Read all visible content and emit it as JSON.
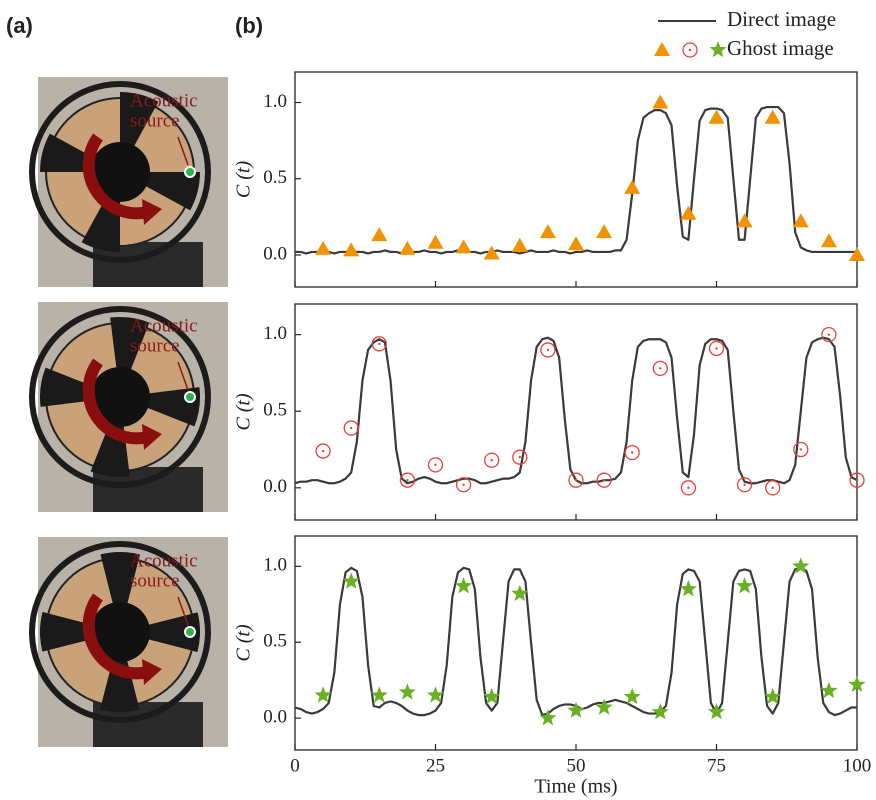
{
  "panel_labels": [
    "(a)",
    "(b)"
  ],
  "photos": [
    {
      "label_lines": [
        "Acoustic",
        "source"
      ]
    },
    {
      "label_lines": [
        "Acoustic",
        "source"
      ]
    },
    {
      "label_lines": [
        "Acoustic",
        "source"
      ]
    }
  ],
  "chart_data": [
    {
      "type": "line",
      "ylabel": "C (t)",
      "xlim": [
        0,
        100
      ],
      "xticks": [
        0,
        25,
        50,
        75,
        100
      ],
      "ylim": [
        -0.21,
        1.2
      ],
      "yticks": [
        {
          "value": 0,
          "label": "0.0"
        },
        0.5,
        {
          "value": 1,
          "label": "1.0"
        }
      ],
      "series": [
        {
          "name": "Direct image",
          "color": "#3a3a3a",
          "marker": "none",
          "x": [
            0,
            1,
            2,
            3,
            4,
            5,
            6,
            7,
            8,
            9,
            10,
            11,
            12,
            13,
            14,
            15,
            16,
            17,
            18,
            19,
            20,
            21,
            22,
            23,
            24,
            25,
            26,
            27,
            28,
            29,
            30,
            31,
            32,
            33,
            34,
            35,
            36,
            37,
            38,
            39,
            40,
            41,
            42,
            43,
            44,
            45,
            46,
            47,
            48,
            49,
            50,
            51,
            52,
            53,
            54,
            55,
            56,
            57,
            58,
            59,
            60,
            61,
            62,
            63,
            64,
            65,
            66,
            67,
            68,
            69,
            70,
            71,
            72,
            73,
            74,
            75,
            76,
            77,
            78,
            79,
            80,
            81,
            82,
            83,
            84,
            85,
            86,
            87,
            88,
            89,
            90,
            91,
            92,
            93,
            94,
            95,
            96,
            97,
            98,
            99,
            100
          ],
          "values": [
            0.02,
            0.02,
            0.01,
            0.02,
            0.02,
            0.03,
            0.02,
            0.01,
            0.02,
            0.02,
            0.03,
            0.02,
            0.02,
            0.01,
            0.02,
            0.02,
            0.03,
            0.02,
            0.02,
            0.01,
            0.02,
            0.02,
            0.02,
            0.03,
            0.02,
            0.02,
            0.01,
            0.02,
            0.02,
            0.03,
            0.02,
            0.02,
            0.02,
            0.01,
            0.02,
            0.02,
            0.03,
            0.02,
            0.02,
            0.02,
            0.01,
            0.02,
            0.03,
            0.02,
            0.02,
            0.02,
            0.03,
            0.02,
            0.02,
            0.01,
            0.02,
            0.02,
            0.03,
            0.02,
            0.02,
            0.02,
            0.02,
            0.03,
            0.03,
            0.1,
            0.4,
            0.75,
            0.9,
            0.93,
            0.95,
            0.95,
            0.93,
            0.85,
            0.45,
            0.12,
            0.1,
            0.5,
            0.88,
            0.95,
            0.96,
            0.96,
            0.95,
            0.9,
            0.5,
            0.1,
            0.1,
            0.5,
            0.9,
            0.96,
            0.97,
            0.97,
            0.97,
            0.93,
            0.6,
            0.15,
            0.05,
            0.03,
            0.02,
            0.02,
            0.02,
            0.02,
            0.02,
            0.02,
            0.02,
            0.02,
            0.02
          ]
        },
        {
          "name": "Ghost image",
          "color": "#f39200",
          "marker": "triangle",
          "x": [
            5,
            10,
            15,
            20,
            25,
            30,
            35,
            40,
            45,
            50,
            55,
            60,
            65,
            70,
            75,
            80,
            85,
            90,
            95,
            100
          ],
          "values": [
            0.04,
            0.03,
            0.13,
            0.04,
            0.08,
            0.05,
            0.01,
            0.06,
            0.15,
            0.07,
            0.15,
            0.44,
            1.0,
            0.27,
            0.9,
            0.22,
            0.9,
            0.22,
            0.09,
            0.0
          ]
        }
      ]
    },
    {
      "type": "line",
      "ylabel": "C (t)",
      "xlim": [
        0,
        100
      ],
      "xticks": [
        0,
        25,
        50,
        75,
        100
      ],
      "ylim": [
        -0.21,
        1.2
      ],
      "yticks": [
        {
          "value": 0,
          "label": "0.0"
        },
        0.5,
        {
          "value": 1,
          "label": "1.0"
        }
      ],
      "series": [
        {
          "name": "Direct image",
          "color": "#3a3a3a",
          "marker": "none",
          "x": [
            0,
            1,
            2,
            3,
            4,
            5,
            6,
            7,
            8,
            9,
            10,
            11,
            12,
            13,
            14,
            15,
            16,
            17,
            18,
            19,
            20,
            21,
            22,
            23,
            24,
            25,
            26,
            27,
            28,
            29,
            30,
            31,
            32,
            33,
            34,
            35,
            36,
            37,
            38,
            39,
            40,
            41,
            42,
            43,
            44,
            45,
            46,
            47,
            48,
            49,
            50,
            51,
            52,
            53,
            54,
            55,
            56,
            57,
            58,
            59,
            60,
            61,
            62,
            63,
            64,
            65,
            66,
            67,
            68,
            69,
            70,
            71,
            72,
            73,
            74,
            75,
            76,
            77,
            78,
            79,
            80,
            81,
            82,
            83,
            84,
            85,
            86,
            87,
            88,
            89,
            90,
            91,
            92,
            93,
            94,
            95,
            96,
            97,
            98,
            99,
            100
          ],
          "values": [
            0.03,
            0.04,
            0.04,
            0.05,
            0.05,
            0.04,
            0.03,
            0.03,
            0.04,
            0.06,
            0.1,
            0.3,
            0.7,
            0.9,
            0.95,
            0.97,
            0.95,
            0.7,
            0.25,
            0.06,
            0.03,
            0.04,
            0.06,
            0.07,
            0.06,
            0.04,
            0.03,
            0.03,
            0.04,
            0.05,
            0.06,
            0.06,
            0.05,
            0.03,
            0.03,
            0.04,
            0.05,
            0.06,
            0.06,
            0.07,
            0.1,
            0.3,
            0.7,
            0.92,
            0.97,
            0.98,
            0.96,
            0.85,
            0.45,
            0.12,
            0.05,
            0.03,
            0.03,
            0.04,
            0.04,
            0.05,
            0.05,
            0.06,
            0.1,
            0.3,
            0.7,
            0.92,
            0.96,
            0.97,
            0.97,
            0.97,
            0.95,
            0.85,
            0.45,
            0.1,
            0.07,
            0.35,
            0.8,
            0.94,
            0.97,
            0.97,
            0.96,
            0.9,
            0.5,
            0.12,
            0.04,
            0.03,
            0.03,
            0.04,
            0.05,
            0.05,
            0.04,
            0.03,
            0.05,
            0.15,
            0.5,
            0.85,
            0.95,
            0.97,
            0.98,
            0.97,
            0.92,
            0.6,
            0.2,
            0.07,
            0.05
          ]
        },
        {
          "name": "Ghost image",
          "color": "#e8403a",
          "marker": "circle",
          "x": [
            5,
            10,
            15,
            20,
            25,
            30,
            35,
            40,
            45,
            50,
            55,
            60,
            65,
            70,
            75,
            80,
            85,
            90,
            95,
            100
          ],
          "values": [
            0.24,
            0.39,
            0.94,
            0.05,
            0.15,
            0.02,
            0.18,
            0.2,
            0.9,
            0.05,
            0.05,
            0.23,
            0.78,
            0.0,
            0.91,
            0.02,
            0.0,
            0.25,
            1.0,
            0.05
          ]
        }
      ]
    },
    {
      "type": "line",
      "ylabel": "C (t)",
      "xlabel": "Time (ms)",
      "xlim": [
        0,
        100
      ],
      "xticks": [
        0,
        25,
        50,
        75,
        100
      ],
      "ylim": [
        -0.21,
        1.2
      ],
      "yticks": [
        {
          "value": 0,
          "label": "0.0"
        },
        0.5,
        {
          "value": 1,
          "label": "1.0"
        }
      ],
      "series": [
        {
          "name": "Direct image",
          "color": "#3a3a3a",
          "marker": "none",
          "x": [
            0,
            1,
            2,
            3,
            4,
            5,
            6,
            7,
            8,
            9,
            10,
            11,
            12,
            13,
            14,
            15,
            16,
            17,
            18,
            19,
            20,
            21,
            22,
            23,
            24,
            25,
            26,
            27,
            28,
            29,
            30,
            31,
            32,
            33,
            34,
            35,
            36,
            37,
            38,
            39,
            40,
            41,
            42,
            43,
            44,
            45,
            46,
            47,
            48,
            49,
            50,
            51,
            52,
            53,
            54,
            55,
            56,
            57,
            58,
            59,
            60,
            61,
            62,
            63,
            64,
            65,
            66,
            67,
            68,
            69,
            70,
            71,
            72,
            73,
            74,
            75,
            76,
            77,
            78,
            79,
            80,
            81,
            82,
            83,
            84,
            85,
            86,
            87,
            88,
            89,
            90,
            91,
            92,
            93,
            94,
            95,
            96,
            97,
            98,
            99,
            100
          ],
          "values": [
            0.07,
            0.06,
            0.04,
            0.03,
            0.04,
            0.06,
            0.1,
            0.3,
            0.75,
            0.96,
            0.99,
            0.97,
            0.8,
            0.35,
            0.08,
            0.07,
            0.1,
            0.11,
            0.1,
            0.08,
            0.05,
            0.03,
            0.02,
            0.02,
            0.03,
            0.05,
            0.1,
            0.35,
            0.8,
            0.96,
            0.99,
            0.98,
            0.85,
            0.4,
            0.1,
            0.05,
            0.1,
            0.5,
            0.9,
            0.98,
            0.98,
            0.9,
            0.5,
            0.12,
            0.02,
            0.03,
            0.06,
            0.08,
            0.09,
            0.09,
            0.08,
            0.06,
            0.07,
            0.09,
            0.1,
            0.1,
            0.11,
            0.12,
            0.11,
            0.1,
            0.08,
            0.06,
            0.04,
            0.03,
            0.03,
            0.04,
            0.08,
            0.3,
            0.75,
            0.95,
            0.98,
            0.97,
            0.9,
            0.5,
            0.1,
            0.03,
            0.1,
            0.5,
            0.9,
            0.97,
            0.98,
            0.97,
            0.85,
            0.4,
            0.08,
            0.03,
            0.1,
            0.5,
            0.9,
            0.98,
            0.99,
            0.97,
            0.85,
            0.4,
            0.1,
            0.04,
            0.02,
            0.03,
            0.05,
            0.07,
            0.07
          ]
        },
        {
          "name": "Ghost image",
          "color": "#6ab023",
          "marker": "star",
          "x": [
            5,
            10,
            15,
            20,
            25,
            30,
            35,
            40,
            45,
            50,
            55,
            60,
            65,
            70,
            75,
            80,
            85,
            90,
            95,
            100
          ],
          "values": [
            0.15,
            0.9,
            0.15,
            0.17,
            0.15,
            0.87,
            0.14,
            0.82,
            0.0,
            0.05,
            0.07,
            0.14,
            0.04,
            0.85,
            0.04,
            0.87,
            0.14,
            1.0,
            0.18,
            0.22
          ]
        }
      ]
    }
  ]
}
